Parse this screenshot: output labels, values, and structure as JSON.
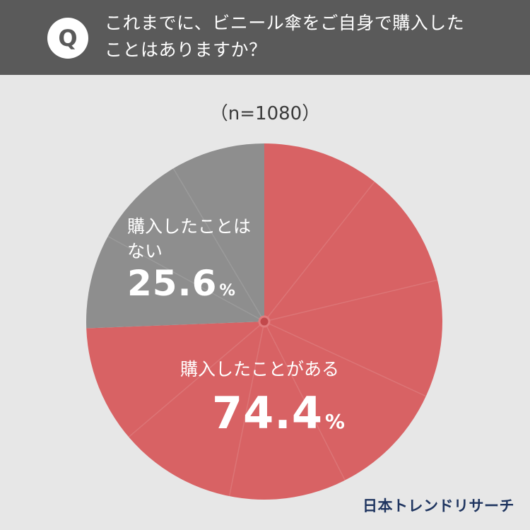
{
  "header": {
    "badge": "Q",
    "question_line1": "これまでに、ビニール傘をご自身で購入した",
    "question_line2": "ことはありますか？"
  },
  "sample_size": "（n=1080）",
  "brand": "日本トレンドリサーチ",
  "chart_data": {
    "type": "pie",
    "title": "これまでに、ビニール傘をご自身で購入したことはありますか？",
    "sample_size": "n=1080",
    "start_angle_deg": 0,
    "direction": "clockwise",
    "slices": [
      {
        "label": "購入したことがある",
        "value": 74.4,
        "display": "74.4",
        "unit": "%",
        "color": "#d86264"
      },
      {
        "label": "購入したことはない",
        "value": 25.6,
        "display": "25.6",
        "unit": "%",
        "color": "#8e8e8e"
      }
    ],
    "label_lines": {
      "no": [
        "購入したことは",
        "ない"
      ]
    }
  },
  "colors": {
    "header_bg": "#5a5a5a",
    "background": "#e7e7e7",
    "yes": "#d86264",
    "no": "#8e8e8e",
    "brand": "#1f3560"
  }
}
